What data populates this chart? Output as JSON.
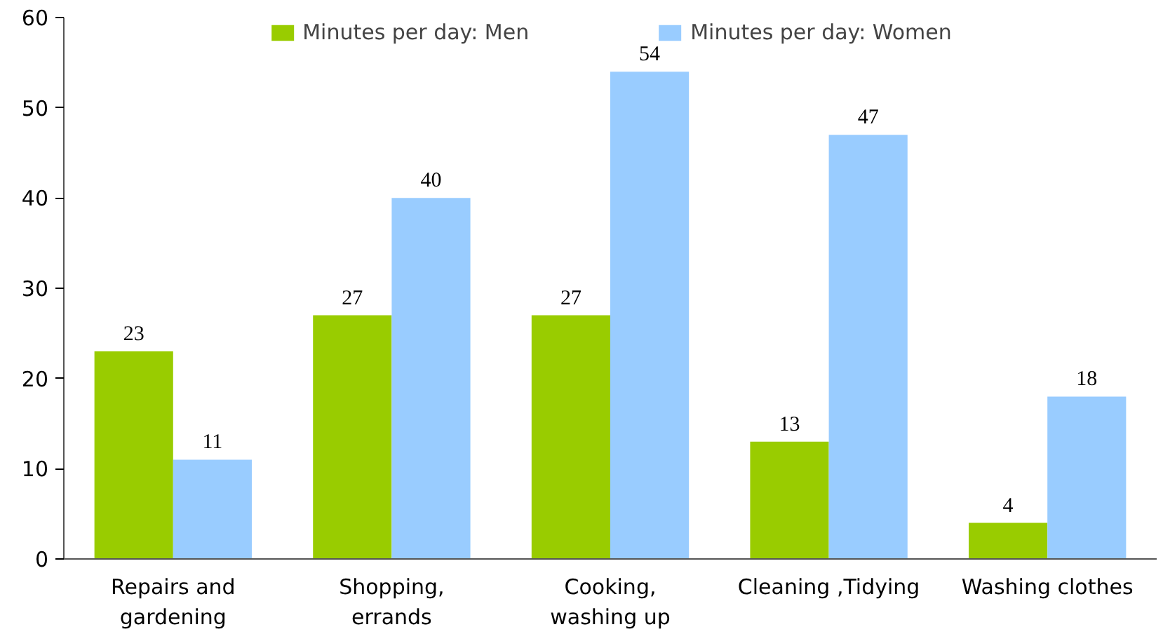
{
  "chart_data": {
    "type": "bar",
    "categories": [
      "Repairs and\ngardening",
      "Shopping,\nerrands",
      "Cooking,\nwashing up",
      "Cleaning ,Tidying",
      "Washing clothes"
    ],
    "series": [
      {
        "name": "Minutes per day: Men",
        "color": "#99cc00",
        "values": [
          23,
          27,
          27,
          13,
          4
        ]
      },
      {
        "name": "Minutes per day: Women",
        "color": "#99ccff",
        "values": [
          11,
          40,
          54,
          47,
          18
        ]
      }
    ],
    "ylim": [
      0,
      60
    ],
    "yticks": [
      0,
      10,
      20,
      30,
      40,
      50,
      60
    ],
    "grid": false,
    "legend": "top",
    "data_labels": true
  }
}
